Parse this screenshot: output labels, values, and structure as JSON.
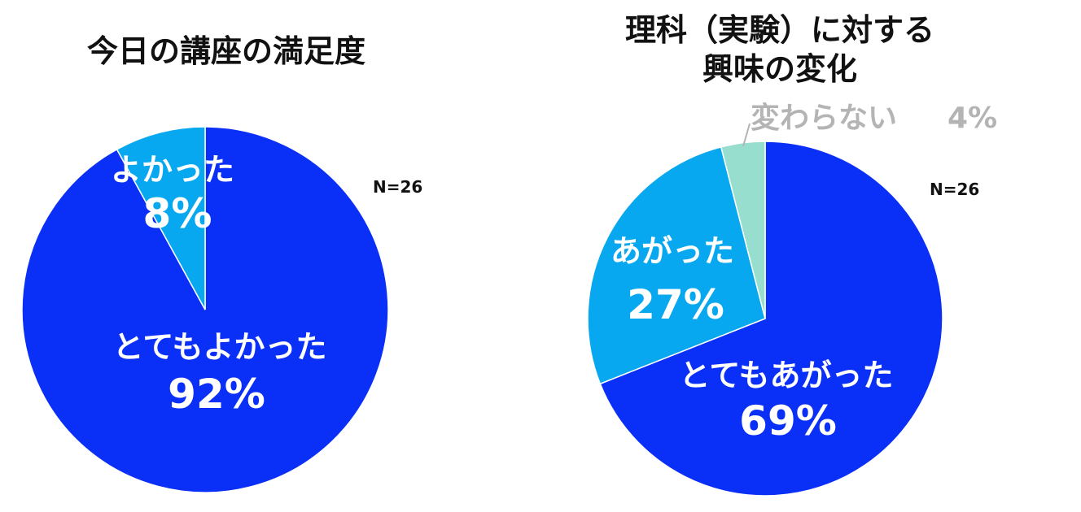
{
  "chart_data": [
    {
      "type": "pie",
      "title": "今日の講座の満足度",
      "n_label": "N=26",
      "start": "12 o'clock",
      "direction": "clockwise",
      "slices": [
        {
          "label": "とてもよかった",
          "value": 92,
          "value_label": "92%",
          "color": "#0a2ff7"
        },
        {
          "label": "よかった",
          "value": 8,
          "value_label": "8%",
          "color": "#07a8f0"
        }
      ]
    },
    {
      "type": "pie",
      "title_lines": [
        "理科（実験）に対する",
        "興味の変化"
      ],
      "n_label": "N=26",
      "start": "12 o'clock",
      "direction": "clockwise",
      "slices": [
        {
          "label": "とてもあがった",
          "value": 69,
          "value_label": "69%",
          "color": "#0a2ff7"
        },
        {
          "label": "あがった",
          "value": 27,
          "value_label": "27%",
          "color": "#07a8f0"
        },
        {
          "label": "変わらない",
          "value": 4,
          "value_label": "4%",
          "color": "#98dece"
        }
      ]
    }
  ]
}
